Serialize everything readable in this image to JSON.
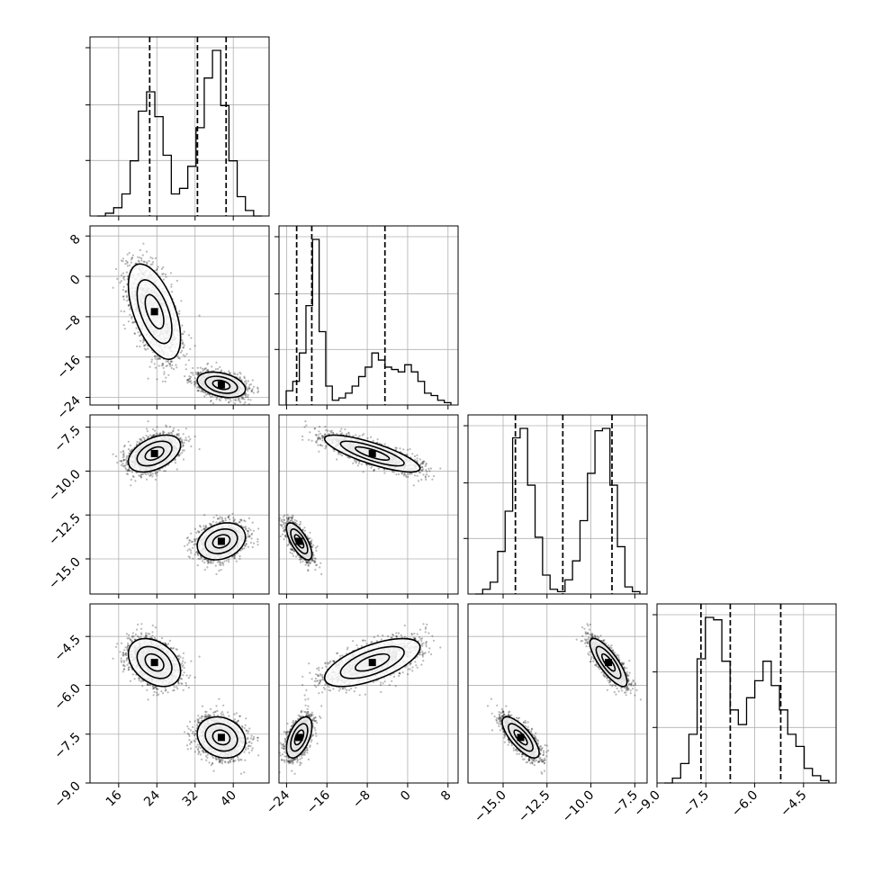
{
  "chart_data": {
    "type": "corner",
    "grid": true,
    "parameters": [
      {
        "ticks": [
          16,
          24,
          32,
          40
        ],
        "tick_labels": [
          "16",
          "24",
          "32",
          "40"
        ],
        "range": [
          10,
          47.5
        ]
      },
      {
        "ticks": [
          -24,
          -16,
          -8,
          0,
          8
        ],
        "tick_labels": [
          "−24",
          "−16",
          "−8",
          "0",
          "8"
        ],
        "range": [
          -25.5,
          10
        ]
      },
      {
        "ticks": [
          -15.0,
          -12.5,
          -10.0,
          -7.5
        ],
        "tick_labels": [
          "−15.0",
          "−12.5",
          "−10.0",
          "−7.5"
        ],
        "range": [
          -17.0,
          -6.8
        ]
      },
      {
        "ticks": [
          -9.0,
          -7.5,
          -6.0,
          -4.5
        ],
        "tick_labels": [
          "−9.0",
          "−7.5",
          "−6.0",
          "−4.5"
        ],
        "range": [
          -9.0,
          -3.5
        ]
      }
    ],
    "quantiles": [
      [
        22.5,
        32.5,
        38.5
      ],
      [
        -22.0,
        -19.0,
        -4.5
      ],
      [
        -14.3,
        -11.6,
        -8.8
      ],
      [
        -7.65,
        -6.75,
        -5.2
      ]
    ],
    "modes": [
      {
        "weight": 0.5,
        "mean": [
          23.5,
          -7.0,
          -9.0,
          -5.3
        ],
        "sd": [
          2.6,
          4.5,
          0.5,
          0.35
        ],
        "rot": [
          -0.55,
          -0.8,
          -0.8
        ]
      },
      {
        "weight": 0.5,
        "mean": [
          37.5,
          -21.5,
          -14.0,
          -7.6
        ],
        "sd": [
          2.4,
          1.2,
          0.5,
          0.3
        ],
        "rot": [
          -0.35,
          -0.7,
          -0.75
        ]
      }
    ],
    "histograms": [
      {
        "counts": [
          0,
          1,
          3,
          8,
          20,
          38,
          45,
          36,
          22,
          8,
          10,
          18,
          32,
          50,
          60,
          40,
          20,
          7,
          2,
          0
        ]
      },
      {
        "counts": [
          6,
          10,
          22,
          42,
          70,
          31,
          8,
          2,
          3,
          5,
          8,
          12,
          16,
          22,
          19,
          16,
          15,
          14,
          17,
          14,
          10,
          5,
          4,
          2,
          1
        ]
      },
      {
        "counts": [
          0,
          2,
          5,
          18,
          35,
          66,
          70,
          46,
          24,
          8,
          2,
          1,
          6,
          14,
          31,
          51,
          69,
          70,
          46,
          20,
          3,
          1
        ]
      },
      {
        "counts": [
          0,
          2,
          8,
          20,
          51,
          68,
          67,
          50,
          30,
          24,
          35,
          42,
          50,
          40,
          30,
          20,
          15,
          6,
          3,
          1
        ]
      }
    ]
  }
}
